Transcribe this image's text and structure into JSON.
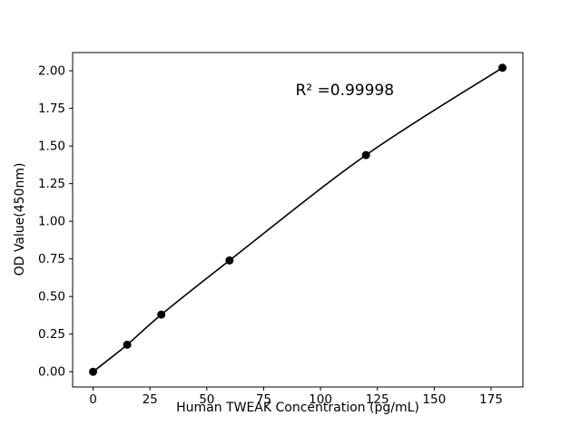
{
  "chart_data": {
    "type": "scatter",
    "title": "",
    "xlabel": "Human TWEAK Concentration (pg/mL)",
    "ylabel": "OD Value(450nm)",
    "x": [
      0,
      15,
      30,
      60,
      120,
      180
    ],
    "y": [
      0.0,
      0.18,
      0.38,
      0.74,
      1.44,
      2.02
    ],
    "xlim": [
      -9,
      189
    ],
    "ylim": [
      -0.101,
      2.121
    ],
    "xticks": [
      0,
      25,
      50,
      75,
      100,
      125,
      150,
      175
    ],
    "xtick_labels": [
      "0",
      "25",
      "50",
      "75",
      "100",
      "125",
      "150",
      "175"
    ],
    "yticks": [
      0.0,
      0.25,
      0.5,
      0.75,
      1.0,
      1.25,
      1.5,
      1.75,
      2.0
    ],
    "ytick_labels": [
      "0.00",
      "0.25",
      "0.50",
      "0.75",
      "1.00",
      "1.25",
      "1.50",
      "1.75",
      "2.00"
    ],
    "annotation": {
      "text": "R² =0.99998",
      "x": 89,
      "y": 1.84
    },
    "grid": false,
    "legend": "none",
    "line_color": "#000000",
    "marker_color": "#000000",
    "background": "#ffffff"
  }
}
